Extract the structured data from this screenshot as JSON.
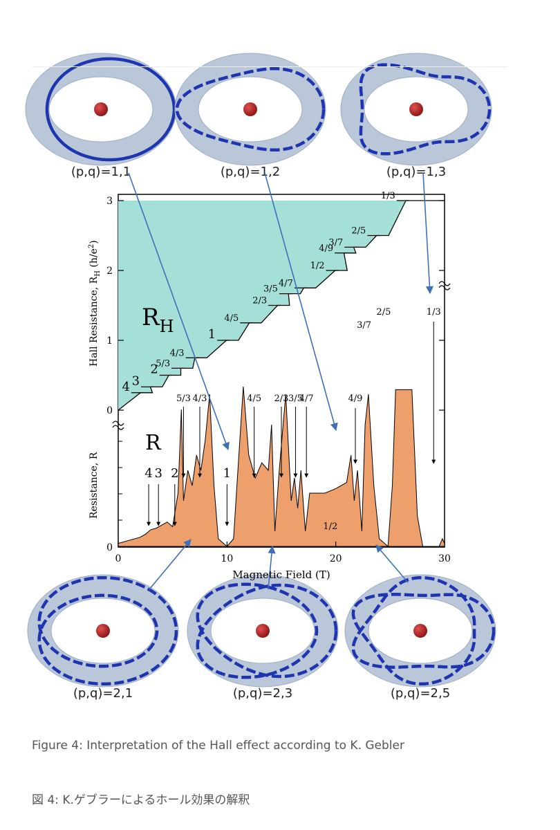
{
  "captions": {
    "english": "Figure 4: Interpretation of the Hall effect according to K. Gebler",
    "japanese": "図 4: K.ゲブラーによるホール効果の解釈"
  },
  "torus_diagrams": [
    {
      "label": "(p,q)=1,1",
      "p": 1,
      "q": 1
    },
    {
      "label": "(p,q)=1,2",
      "p": 1,
      "q": 2
    },
    {
      "label": "(p,q)=1,3",
      "p": 1,
      "q": 3
    },
    {
      "label": "(p,q)=2,1",
      "p": 2,
      "q": 1
    },
    {
      "label": "(p,q)=2,3",
      "p": 2,
      "q": 3
    },
    {
      "label": "(p,q)=2,5",
      "p": 2,
      "q": 5
    }
  ],
  "colors": {
    "hall_fill": "#a4e0d8",
    "resistance_fill": "#eea06c",
    "torus": "#b6c4d6",
    "curve": "#1f35b0",
    "sphere": "#b42222",
    "arrow": "#3f6fb8"
  },
  "chart_data": {
    "type": "area",
    "xlabel": "Magnetic Field (T)",
    "ylabel_hall": "Hall Resistance, R",
    "ylabel_hall_sub": "H",
    "ylabel_hall_unit": " (h/e",
    "ylabel_hall_unit_sup": "2",
    "ylabel_hall_unit_close": ")",
    "ylabel_res": "Resistance, R",
    "xlim": [
      0,
      30
    ],
    "ylim_hall": [
      0,
      3
    ],
    "x_ticks": [
      "0",
      "10",
      "20",
      "30"
    ],
    "y_ticks_hall": [
      "0",
      "1",
      "2",
      "3"
    ],
    "y_tick_res_zero": "0",
    "label_RH": "R",
    "label_RH_sub": "H",
    "label_R": "R",
    "hall_plateaus": [
      {
        "label": "4",
        "x": 2.6,
        "y": 0.25
      },
      {
        "label": "3",
        "x": 3.5,
        "y": 0.333
      },
      {
        "label": "2",
        "x": 5.2,
        "y": 0.5
      },
      {
        "label": "5/3",
        "x": 6.3,
        "y": 0.6
      },
      {
        "label": "4/3",
        "x": 7.6,
        "y": 0.75
      },
      {
        "label": "1",
        "x": 10.5,
        "y": 1.0
      },
      {
        "label": "4/5",
        "x": 12.6,
        "y": 1.25
      },
      {
        "label": "2/3",
        "x": 15.2,
        "y": 1.5
      },
      {
        "label": "3/5",
        "x": 16.2,
        "y": 1.667
      },
      {
        "label": "4/7",
        "x": 17.6,
        "y": 1.75
      },
      {
        "label": "1/2",
        "x": 20.5,
        "y": 2.0
      },
      {
        "label": "4/9",
        "x": 21.3,
        "y": 2.25
      },
      {
        "label": "3/7",
        "x": 22.2,
        "y": 2.333
      },
      {
        "label": "2/5",
        "x": 24.3,
        "y": 2.5
      },
      {
        "label": "1/3",
        "x": 27.0,
        "y": 3.0
      }
    ],
    "resistance_labels": [
      {
        "label": "4",
        "x": 2.8
      },
      {
        "label": "3",
        "x": 3.7
      },
      {
        "label": "2",
        "x": 5.2
      },
      {
        "label": "5/3",
        "x": 6.0
      },
      {
        "label": "4/3",
        "x": 7.5
      },
      {
        "label": "1",
        "x": 10.0
      },
      {
        "label": "4/5",
        "x": 12.5
      },
      {
        "label": "2/3",
        "x": 15.0
      },
      {
        "label": "3/5",
        "x": 16.3
      },
      {
        "label": "4/7",
        "x": 17.3
      },
      {
        "label": "1/2",
        "x": 19.5
      },
      {
        "label": "4/9",
        "x": 21.8
      },
      {
        "label": "3/7",
        "x": 22.6
      },
      {
        "label": "2/5",
        "x": 24.4
      },
      {
        "label": "1/3",
        "x": 29.0
      }
    ],
    "resistance_curve": [
      [
        0,
        0.02
      ],
      [
        1,
        0.04
      ],
      [
        2,
        0.06
      ],
      [
        2.5,
        0.08
      ],
      [
        3,
        0.11
      ],
      [
        3.5,
        0.12
      ],
      [
        4,
        0.14
      ],
      [
        4.5,
        0.16
      ],
      [
        5,
        0.13
      ],
      [
        5.5,
        0.35
      ],
      [
        5.8,
        0.9
      ],
      [
        6.0,
        0.3
      ],
      [
        6.4,
        0.5
      ],
      [
        6.8,
        0.4
      ],
      [
        7.2,
        0.6
      ],
      [
        7.6,
        0.5
      ],
      [
        8.0,
        0.7
      ],
      [
        8.4,
        1.0
      ],
      [
        8.8,
        0.4
      ],
      [
        9.2,
        0.05
      ],
      [
        10,
        0.0
      ],
      [
        10.6,
        0.05
      ],
      [
        11.0,
        0.5
      ],
      [
        11.5,
        1.05
      ],
      [
        12.0,
        0.6
      ],
      [
        12.6,
        0.45
      ],
      [
        13.2,
        0.55
      ],
      [
        13.8,
        0.5
      ],
      [
        14.1,
        0.8
      ],
      [
        14.4,
        0.1
      ],
      [
        14.8,
        0.5
      ],
      [
        15.4,
        1.0
      ],
      [
        15.9,
        0.3
      ],
      [
        16.2,
        0.45
      ],
      [
        16.5,
        0.25
      ],
      [
        16.8,
        0.5
      ],
      [
        17.2,
        0.1
      ],
      [
        17.6,
        0.35
      ],
      [
        18.0,
        0.35
      ],
      [
        19.0,
        0.35
      ],
      [
        20.0,
        0.38
      ],
      [
        21.0,
        0.42
      ],
      [
        21.4,
        0.6
      ],
      [
        21.7,
        0.3
      ],
      [
        22.0,
        0.5
      ],
      [
        22.4,
        0.1
      ],
      [
        22.7,
        0.8
      ],
      [
        23.0,
        1.0
      ],
      [
        23.5,
        0.4
      ],
      [
        24.0,
        0.05
      ],
      [
        24.8,
        0.0
      ],
      [
        25.2,
        0.4
      ],
      [
        25.5,
        1.03
      ],
      [
        27.0,
        1.03
      ],
      [
        27.5,
        0.2
      ],
      [
        28.0,
        0.0
      ],
      [
        29.5,
        0.0
      ],
      [
        29.8,
        0.05
      ],
      [
        30,
        0.02
      ]
    ]
  }
}
